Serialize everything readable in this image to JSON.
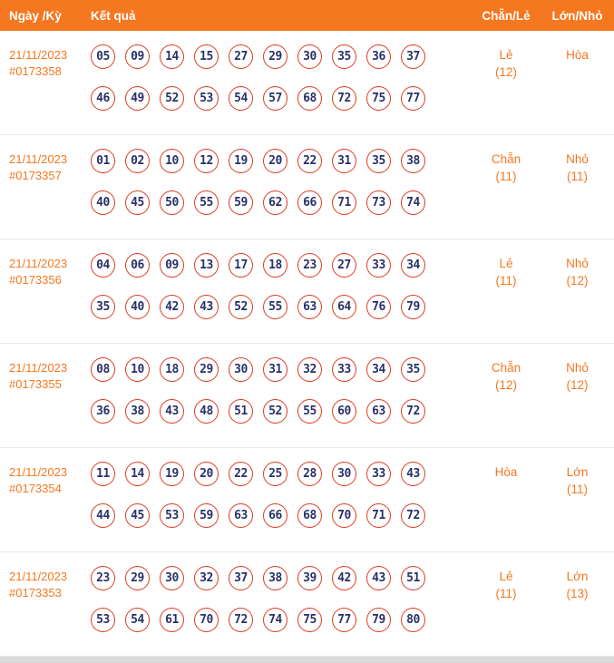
{
  "colors": {
    "accent": "#f5771f",
    "ball_border": "#de3b21",
    "ball_text": "#283168",
    "row_divider": "#e8e8e8",
    "bottom_bar": "#d9d9d9"
  },
  "header": {
    "date_label": "Ngày /Kỳ",
    "result_label": "Kết quả",
    "parity_label": "Chẵn/Lẻ",
    "size_label": "Lớn/Nhỏ"
  },
  "rows": [
    {
      "date": "21/11/2023",
      "period": "#0173358",
      "numbers_line1": [
        "05",
        "09",
        "14",
        "15",
        "27",
        "29",
        "30",
        "35",
        "36",
        "37"
      ],
      "numbers_line2": [
        "46",
        "49",
        "52",
        "53",
        "54",
        "57",
        "68",
        "72",
        "75",
        "77"
      ],
      "parity": "Lẻ",
      "parity_count": "(12)",
      "size": "Hòa",
      "size_count": ""
    },
    {
      "date": "21/11/2023",
      "period": "#0173357",
      "numbers_line1": [
        "01",
        "02",
        "10",
        "12",
        "19",
        "20",
        "22",
        "31",
        "35",
        "38"
      ],
      "numbers_line2": [
        "40",
        "45",
        "50",
        "55",
        "59",
        "62",
        "66",
        "71",
        "73",
        "74"
      ],
      "parity": "Chẵn",
      "parity_count": "(11)",
      "size": "Nhỏ",
      "size_count": "(11)"
    },
    {
      "date": "21/11/2023",
      "period": "#0173356",
      "numbers_line1": [
        "04",
        "06",
        "09",
        "13",
        "17",
        "18",
        "23",
        "27",
        "33",
        "34"
      ],
      "numbers_line2": [
        "35",
        "40",
        "42",
        "43",
        "52",
        "55",
        "63",
        "64",
        "76",
        "79"
      ],
      "parity": "Lẻ",
      "parity_count": "(11)",
      "size": "Nhỏ",
      "size_count": "(12)"
    },
    {
      "date": "21/11/2023",
      "period": "#0173355",
      "numbers_line1": [
        "08",
        "10",
        "18",
        "29",
        "30",
        "31",
        "32",
        "33",
        "34",
        "35"
      ],
      "numbers_line2": [
        "36",
        "38",
        "43",
        "48",
        "51",
        "52",
        "55",
        "60",
        "63",
        "72"
      ],
      "parity": "Chẵn",
      "parity_count": "(12)",
      "size": "Nhỏ",
      "size_count": "(12)"
    },
    {
      "date": "21/11/2023",
      "period": "#0173354",
      "numbers_line1": [
        "11",
        "14",
        "19",
        "20",
        "22",
        "25",
        "28",
        "30",
        "33",
        "43"
      ],
      "numbers_line2": [
        "44",
        "45",
        "53",
        "59",
        "63",
        "66",
        "68",
        "70",
        "71",
        "72"
      ],
      "parity": "Hòa",
      "parity_count": "",
      "size": "Lớn",
      "size_count": "(11)"
    },
    {
      "date": "21/11/2023",
      "period": "#0173353",
      "numbers_line1": [
        "23",
        "29",
        "30",
        "32",
        "37",
        "38",
        "39",
        "42",
        "43",
        "51"
      ],
      "numbers_line2": [
        "53",
        "54",
        "61",
        "70",
        "72",
        "74",
        "75",
        "77",
        "79",
        "80"
      ],
      "parity": "Lẻ",
      "parity_count": "(11)",
      "size": "Lớn",
      "size_count": "(13)"
    }
  ]
}
